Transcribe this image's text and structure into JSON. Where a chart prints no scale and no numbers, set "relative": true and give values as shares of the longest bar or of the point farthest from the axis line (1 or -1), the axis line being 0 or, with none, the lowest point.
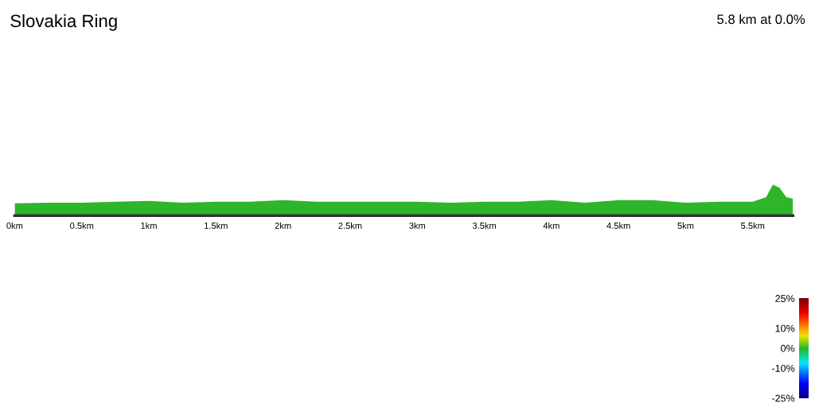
{
  "chart_data": {
    "type": "area",
    "title": "Slovakia Ring",
    "annotations": [
      "5.8 km at 0.0%"
    ],
    "relative": true,
    "color": "#2fb52a",
    "x": [
      0,
      0.25,
      0.5,
      0.75,
      1,
      1.25,
      1.5,
      1.75,
      2,
      2.25,
      2.5,
      2.75,
      3,
      3.25,
      3.5,
      3.75,
      4,
      4.25,
      4.5,
      4.75,
      5,
      5.25,
      5.5,
      5.6,
      5.65,
      5.7,
      5.75,
      5.8
    ],
    "values": [
      0.4,
      0.42,
      0.42,
      0.45,
      0.48,
      0.42,
      0.45,
      0.45,
      0.5,
      0.45,
      0.45,
      0.45,
      0.45,
      0.42,
      0.45,
      0.45,
      0.5,
      0.42,
      0.5,
      0.5,
      0.42,
      0.45,
      0.45,
      0.6,
      1,
      0.9,
      0.6,
      0.55
    ],
    "xlim": [
      0,
      5.8
    ],
    "xticks": [
      {
        "value": 0,
        "label": "0km"
      },
      {
        "value": 0.5,
        "label": "0.5km"
      },
      {
        "value": 1,
        "label": "1km"
      },
      {
        "value": 1.5,
        "label": "1.5km"
      },
      {
        "value": 2,
        "label": "2km"
      },
      {
        "value": 2.5,
        "label": "2.5km"
      },
      {
        "value": 3,
        "label": "3km"
      },
      {
        "value": 3.5,
        "label": "3.5km"
      },
      {
        "value": 4,
        "label": "4km"
      },
      {
        "value": 4.5,
        "label": "4.5km"
      },
      {
        "value": 5,
        "label": "5km"
      },
      {
        "value": 5.5,
        "label": "5.5km"
      }
    ],
    "clim": [
      -25,
      25
    ],
    "cticks": [
      {
        "value": 25,
        "label": "25%"
      },
      {
        "value": 10,
        "label": "10%"
      },
      {
        "value": 0,
        "label": "0%"
      },
      {
        "value": -10,
        "label": "-10%"
      },
      {
        "value": -25,
        "label": "-25%"
      }
    ],
    "grid": false
  }
}
